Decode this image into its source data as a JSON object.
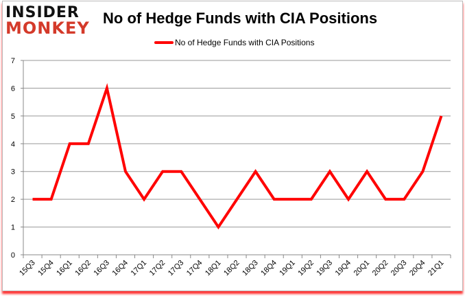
{
  "logo": {
    "line1": "INSIDER",
    "line2": "MONKEY"
  },
  "chart_data": {
    "type": "line",
    "title": "No of Hedge Funds with CIA Positions",
    "xlabel": "",
    "ylabel": "",
    "categories": [
      "15Q3",
      "15Q4",
      "16Q1",
      "16Q2",
      "16Q3",
      "16Q4",
      "17Q1",
      "17Q2",
      "17Q3",
      "17Q4",
      "18Q1",
      "18Q2",
      "18Q3",
      "18Q4",
      "19Q1",
      "19Q2",
      "19Q3",
      "19Q4",
      "20Q1",
      "20Q2",
      "20Q3",
      "20Q4",
      "21Q1"
    ],
    "series": [
      {
        "name": "No of Hedge Funds with CIA Positions",
        "color": "#ff0000",
        "values": [
          2,
          2,
          4,
          4,
          6,
          3,
          2,
          3,
          3,
          2,
          1,
          2,
          3,
          2,
          2,
          2,
          3,
          2,
          3,
          2,
          2,
          3,
          5
        ]
      }
    ],
    "ylim": [
      0,
      7
    ],
    "yticks": [
      0,
      1,
      2,
      3,
      4,
      5,
      6,
      7
    ],
    "grid": true,
    "legend": "top-center"
  }
}
